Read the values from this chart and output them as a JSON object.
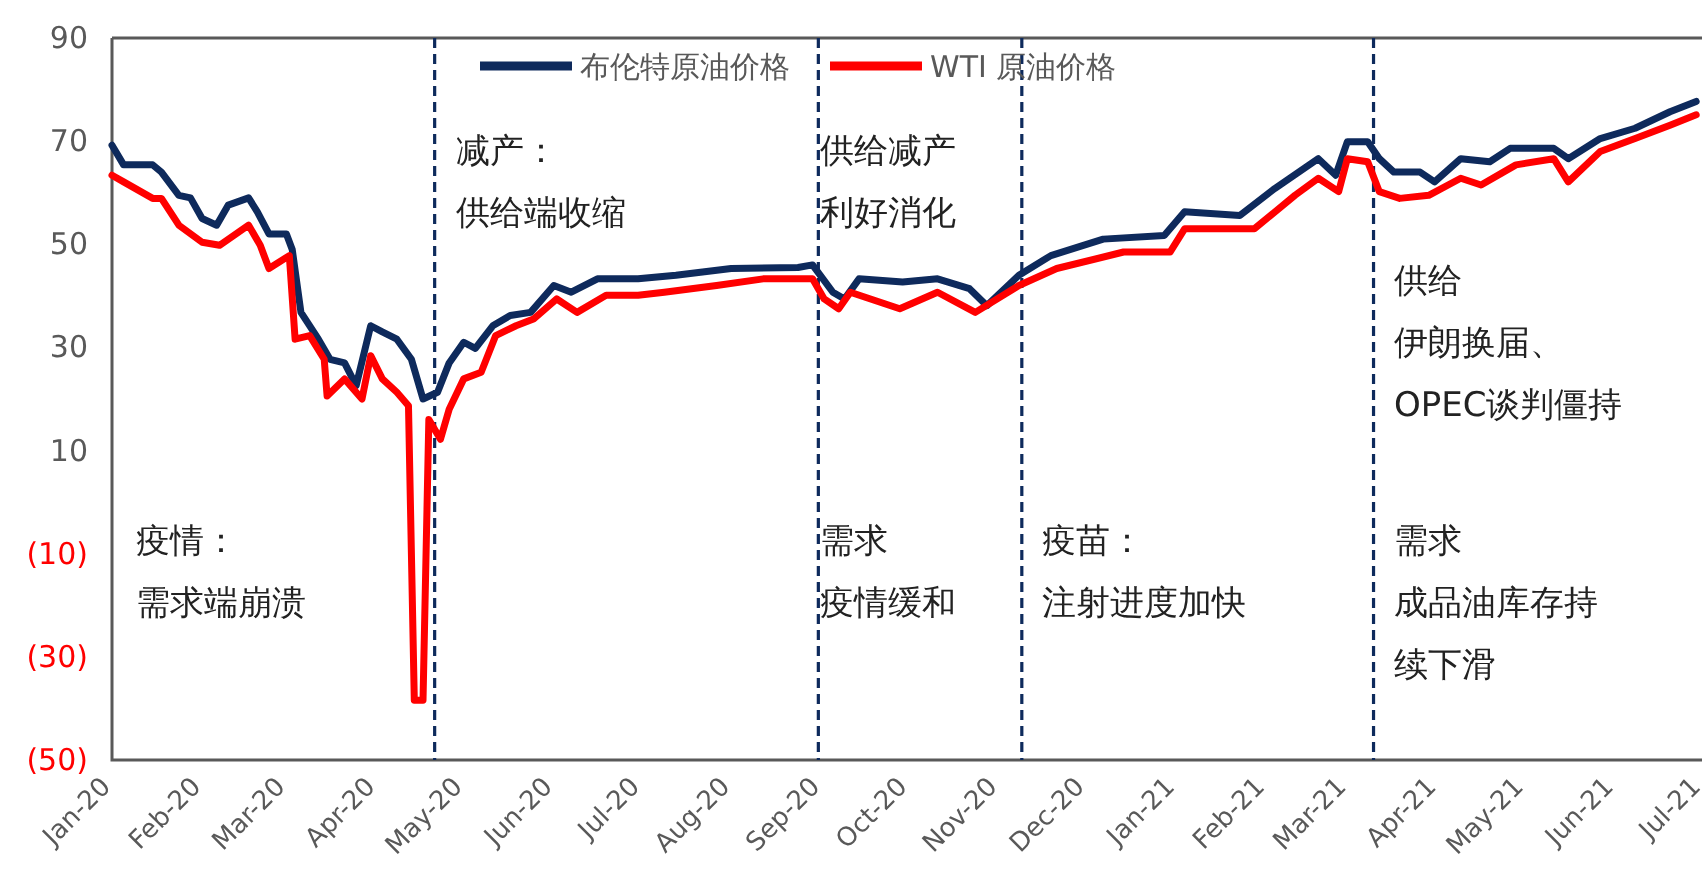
{
  "chart_data": {
    "type": "line",
    "xlim": [
      "2020-01-01",
      "2021-07-01"
    ],
    "xticks": [
      {
        "value": "2020-01-01",
        "label": "Jan-20"
      },
      {
        "value": "2020-02-01",
        "label": "Feb-20"
      },
      {
        "value": "2020-03-01",
        "label": "Mar-20"
      },
      {
        "value": "2020-04-01",
        "label": "Apr-20"
      },
      {
        "value": "2020-05-01",
        "label": "May-20"
      },
      {
        "value": "2020-06-01",
        "label": "Jun-20"
      },
      {
        "value": "2020-07-01",
        "label": "Jul-20"
      },
      {
        "value": "2020-08-01",
        "label": "Aug-20"
      },
      {
        "value": "2020-09-01",
        "label": "Sep-20"
      },
      {
        "value": "2020-10-01",
        "label": "Oct-20"
      },
      {
        "value": "2020-11-01",
        "label": "Nov-20"
      },
      {
        "value": "2020-12-01",
        "label": "Dec-20"
      },
      {
        "value": "2021-01-01",
        "label": "Jan-21"
      },
      {
        "value": "2021-02-01",
        "label": "Feb-21"
      },
      {
        "value": "2021-03-01",
        "label": "Mar-21"
      },
      {
        "value": "2021-04-01",
        "label": "Apr-21"
      },
      {
        "value": "2021-05-01",
        "label": "May-21"
      },
      {
        "value": "2021-06-01",
        "label": "Jun-21"
      },
      {
        "value": "2021-07-01",
        "label": "Jul-21"
      }
    ],
    "ylim": [
      -50,
      90
    ],
    "yticks": [
      {
        "value": -50,
        "label": "(50)"
      },
      {
        "value": -30,
        "label": "(30)"
      },
      {
        "value": -10,
        "label": "(10)"
      },
      10,
      30,
      50,
      70,
      90
    ],
    "legend": "top",
    "series": [
      {
        "name": "布伦特原油价格",
        "color": "#0e2a5c",
        "x": [
          "2020-01-01",
          "2020-01-05",
          "2020-01-15",
          "2020-01-18",
          "2020-01-24",
          "2020-01-28",
          "2020-02-01",
          "2020-02-06",
          "2020-02-10",
          "2020-02-17",
          "2020-02-20",
          "2020-02-24",
          "2020-03-01",
          "2020-03-03",
          "2020-03-06",
          "2020-03-12",
          "2020-03-16",
          "2020-03-21",
          "2020-03-25",
          "2020-03-30",
          "2020-04-03",
          "2020-04-08",
          "2020-04-13",
          "2020-04-17",
          "2020-04-22",
          "2020-04-26",
          "2020-05-01",
          "2020-05-05",
          "2020-05-11",
          "2020-05-17",
          "2020-05-24",
          "2020-06-01",
          "2020-06-07",
          "2020-06-16",
          "2020-06-30",
          "2020-07-13",
          "2020-08-01",
          "2020-08-24",
          "2020-08-29",
          "2020-09-05",
          "2020-09-09",
          "2020-09-14",
          "2020-09-29",
          "2020-10-11",
          "2020-10-22",
          "2020-10-28",
          "2020-11-08",
          "2020-11-19",
          "2020-12-07",
          "2020-12-28",
          "2021-01-04",
          "2021-01-23",
          "2021-02-04",
          "2021-02-19",
          "2021-02-25",
          "2021-03-01",
          "2021-03-08",
          "2021-03-12",
          "2021-03-17",
          "2021-03-26",
          "2021-03-31",
          "2021-04-09",
          "2021-04-19",
          "2021-04-26",
          "2021-05-11",
          "2021-05-16",
          "2021-05-27",
          "2021-06-08",
          "2021-06-20",
          "2021-06-29"
        ],
        "values": [
          69.2,
          65.4,
          65.4,
          64,
          59.5,
          59,
          55,
          53.7,
          57.6,
          59,
          56.3,
          52,
          52,
          49,
          36.8,
          31.6,
          27.7,
          27,
          22.6,
          34.2,
          33,
          31.6,
          27.7,
          20,
          21.3,
          27,
          31,
          29.8,
          34.2,
          36.2,
          36.8,
          42,
          40.7,
          43.3,
          43.3,
          44,
          45.3,
          45.5,
          46,
          40.7,
          39.4,
          43.3,
          42.7,
          43.3,
          41.4,
          38.1,
          44,
          47.8,
          51,
          51.7,
          56.3,
          55.6,
          60.8,
          66.6,
          63.4,
          69.9,
          69.9,
          66.6,
          64,
          64,
          62.1,
          66.6,
          66,
          68.6,
          68.6,
          66.6,
          70.5,
          72.5,
          75.7,
          77.7
        ]
      },
      {
        "name": "WTI 原油价格",
        "color": "#ff0000",
        "x": [
          "2020-01-01",
          "2020-01-05",
          "2020-01-15",
          "2020-01-18",
          "2020-01-24",
          "2020-02-01",
          "2020-02-07",
          "2020-02-17",
          "2020-02-21",
          "2020-02-24",
          "2020-03-02",
          "2020-03-04",
          "2020-03-09",
          "2020-03-14",
          "2020-03-15",
          "2020-03-21",
          "2020-03-27",
          "2020-03-30",
          "2020-04-03",
          "2020-04-08",
          "2020-04-12",
          "2020-04-14",
          "2020-04-17",
          "2020-04-19",
          "2020-04-23",
          "2020-04-26",
          "2020-05-01",
          "2020-05-07",
          "2020-05-12",
          "2020-05-19",
          "2020-05-25",
          "2020-06-02",
          "2020-06-09",
          "2020-06-19",
          "2020-06-30",
          "2020-07-09",
          "2020-07-27",
          "2020-08-12",
          "2020-08-29",
          "2020-09-02",
          "2020-09-07",
          "2020-09-11",
          "2020-09-28",
          "2020-10-11",
          "2020-10-24",
          "2020-11-08",
          "2020-11-21",
          "2020-12-14",
          "2020-12-30",
          "2021-01-04",
          "2021-01-28",
          "2021-02-11",
          "2021-02-19",
          "2021-02-26",
          "2021-03-01",
          "2021-03-08",
          "2021-03-12",
          "2021-03-19",
          "2021-03-29",
          "2021-04-09",
          "2021-04-16",
          "2021-04-28",
          "2021-05-11",
          "2021-05-16",
          "2021-05-27",
          "2021-06-08",
          "2021-06-20",
          "2021-06-29"
        ],
        "values": [
          63.4,
          62.1,
          58.9,
          58.9,
          53.7,
          50.4,
          49.8,
          53.7,
          49.8,
          45.3,
          47.8,
          31.6,
          32.3,
          27.7,
          20.6,
          23.9,
          20,
          28.4,
          23.9,
          21.3,
          18.7,
          -38.4,
          -38.4,
          16,
          12.2,
          18,
          23.9,
          25.2,
          32.3,
          34.2,
          35.5,
          39.4,
          36.8,
          40.1,
          40.1,
          40.7,
          42,
          43.3,
          43.3,
          39.4,
          37.5,
          40.7,
          37.5,
          40.7,
          36.8,
          42,
          45.3,
          48.5,
          48.5,
          53,
          53,
          59.5,
          62.8,
          60.2,
          66.6,
          66,
          60.2,
          58.9,
          59.5,
          62.8,
          61.5,
          65.4,
          66.6,
          62.1,
          68,
          70.5,
          73.1,
          75.1
        ]
      }
    ],
    "ref_lines": [
      {
        "axis": "x",
        "value": "2020-04-21",
        "color": "#0e2a5c",
        "line_style": "dashed"
      },
      {
        "axis": "x",
        "value": "2020-08-31",
        "color": "#0e2a5c",
        "line_style": "dashed"
      },
      {
        "axis": "x",
        "value": "2020-11-09",
        "color": "#0e2a5c",
        "line_style": "dashed"
      },
      {
        "axis": "x",
        "value": "2021-03-10",
        "color": "#0e2a5c",
        "line_style": "dashed"
      }
    ],
    "annotations": [
      "疫情：",
      "需求端崩溃",
      "减产：",
      "供给端收缩",
      "供给减产",
      "利好消化",
      "需求",
      "疫情缓和",
      "疫苗：",
      "注射进度加快",
      "供给",
      "伊朗换届、",
      "OPEC谈判僵持",
      "需求",
      "成品油库存持",
      "续下滑"
    ]
  }
}
